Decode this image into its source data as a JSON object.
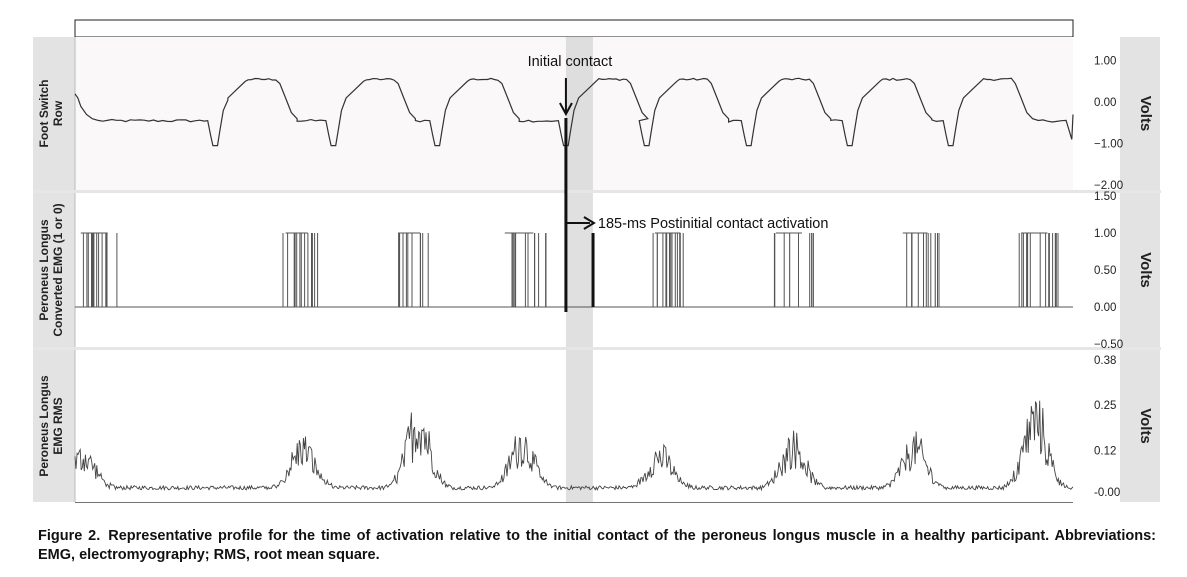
{
  "figure": {
    "caption_label": "Figure 2.",
    "caption_text": "Representative profile for the time of activation relative to the initial contact of the peroneus longus muscle in a healthy participant. Abbreviations: EMG, electromyography; RMS, root mean square."
  },
  "chart_data": [
    {
      "type": "line",
      "panel": "foot-switch",
      "ylabel_lines": [
        "Foot Switch",
        "Row"
      ],
      "right_label": "Volts",
      "yticks": [
        1.0,
        0.0,
        -1.0,
        -2.0
      ],
      "ytick_labels": [
        "1.00",
        "0.00",
        "−1.00",
        "−2.00"
      ],
      "ylim": [
        -2.05,
        1.5
      ],
      "stance_onsets": [
        0.245,
        0.45,
        0.63,
        0.853,
        0.993,
        1.17,
        1.345,
        1.52
      ],
      "levels": {
        "swing": -0.45,
        "stance": 0.55,
        "dip": -1.05
      },
      "annotation": {
        "text": "Initial contact"
      }
    },
    {
      "type": "line",
      "panel": "converted-emg",
      "ylabel_lines": [
        "Peroneus Longus",
        "Converted EMG (1 or 0)"
      ],
      "right_label": "Volts",
      "yticks": [
        1.5,
        1.0,
        0.5,
        0.0,
        -0.5
      ],
      "ytick_labels": [
        "1.50",
        "1.00",
        "0.50",
        "0.00",
        "−0.50"
      ],
      "ylim": [
        -0.5,
        1.5
      ],
      "values_range": [
        0,
        1
      ],
      "burst_starts": [
        0.005,
        0.36,
        0.555,
        0.74,
        1.0,
        1.21,
        1.43,
        1.635
      ],
      "annotation": {
        "text": "185-ms Postinitial contact activation"
      }
    },
    {
      "type": "line",
      "panel": "emg-rms",
      "ylabel_lines": [
        "Peroneus Longus",
        "EMG RMS"
      ],
      "right_label": "Volts",
      "yticks": [
        0.38,
        0.25,
        0.12,
        0.0
      ],
      "ytick_labels": [
        "0.38",
        "0.25",
        "0.12",
        "-0.00"
      ],
      "ylim": [
        -0.02,
        0.4
      ],
      "baseline": 0.01,
      "burst_peaks": [
        {
          "t": 0.02,
          "v": 0.12
        },
        {
          "t": 0.4,
          "v": 0.15
        },
        {
          "t": 0.6,
          "v": 0.25
        },
        {
          "t": 0.78,
          "v": 0.17
        },
        {
          "t": 1.02,
          "v": 0.12
        },
        {
          "t": 1.25,
          "v": 0.16
        },
        {
          "t": 1.46,
          "v": 0.15
        },
        {
          "t": 1.67,
          "v": 0.26
        }
      ]
    }
  ]
}
